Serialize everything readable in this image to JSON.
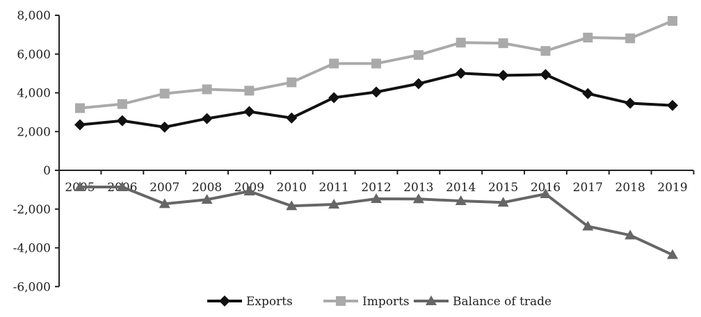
{
  "chart_data": {
    "type": "line",
    "title": "",
    "xlabel": "",
    "ylabel": "",
    "categories": [
      "2005",
      "2006",
      "2007",
      "2008",
      "2009",
      "2010",
      "2011",
      "2012",
      "2013",
      "2014",
      "2015",
      "2016",
      "2017",
      "2018",
      "2019"
    ],
    "ylim": [
      -6000,
      8000
    ],
    "yticks": [
      -6000,
      -4000,
      -2000,
      0,
      2000,
      4000,
      6000,
      8000
    ],
    "ytick_labels": [
      "-6,000",
      "-4,000",
      "-2,000",
      "0",
      "2,000",
      "4,000",
      "6,000",
      "8,000"
    ],
    "grid": false,
    "legend_position": "bottom",
    "series": [
      {
        "name": "Exports",
        "color": "#111111",
        "marker": "diamond",
        "values": [
          2350,
          2560,
          2230,
          2670,
          3030,
          2700,
          3750,
          4040,
          4470,
          5010,
          4900,
          4940,
          3960,
          3460,
          3350
        ]
      },
      {
        "name": "Imports",
        "color": "#aaaaaa",
        "marker": "square",
        "values": [
          3210,
          3420,
          3960,
          4180,
          4110,
          4540,
          5510,
          5510,
          5950,
          6590,
          6560,
          6160,
          6850,
          6810,
          7710
        ]
      },
      {
        "name": "Balance of trade",
        "color": "#666666",
        "marker": "triangle",
        "values": [
          -860,
          -860,
          -1730,
          -1510,
          -1080,
          -1840,
          -1760,
          -1470,
          -1480,
          -1580,
          -1660,
          -1220,
          -2890,
          -3350,
          -4360
        ]
      }
    ]
  }
}
